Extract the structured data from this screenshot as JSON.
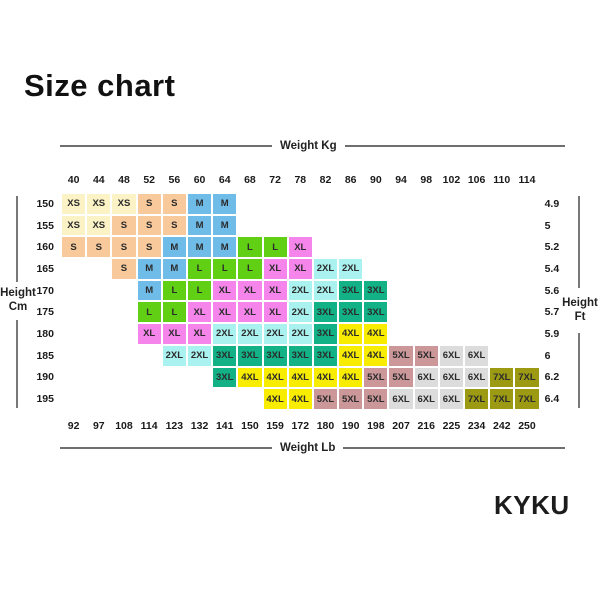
{
  "title": "Size chart",
  "brand": "KYKU",
  "chart_data": {
    "type": "table",
    "title": "Size chart",
    "top_axis": {
      "label": "Weight Kg",
      "values": [
        "40",
        "44",
        "48",
        "52",
        "56",
        "60",
        "64",
        "68",
        "72",
        "78",
        "82",
        "86",
        "90",
        "94",
        "98",
        "102",
        "106",
        "110",
        "114"
      ]
    },
    "bottom_axis": {
      "label": "Weight Lb",
      "values": [
        "92",
        "97",
        "108",
        "114",
        "123",
        "132",
        "141",
        "150",
        "159",
        "172",
        "180",
        "190",
        "198",
        "207",
        "216",
        "225",
        "234",
        "242",
        "250"
      ]
    },
    "left_axis": {
      "label": "Height Cm",
      "values": [
        "150",
        "155",
        "160",
        "165",
        "170",
        "175",
        "180",
        "185",
        "190",
        "195"
      ]
    },
    "right_axis": {
      "label": "Height Ft",
      "values": [
        "4.9",
        "5",
        "5.2",
        "5.4",
        "5.6",
        "5.7",
        "5.9",
        "6",
        "6.2",
        "6.4"
      ]
    },
    "size_colors": {
      "XS": "#FBF2C5",
      "S": "#F8C99B",
      "M": "#6FBCE9",
      "L": "#61D015",
      "XL": "#F584EB",
      "2XL": "#A9F2EF",
      "3XL": "#12B186",
      "4XL": "#F8EC00",
      "5XL": "#CB9799",
      "6XL": "#DCDCDC",
      "7XL": "#9C9A12"
    },
    "grid": [
      {
        "cm": "150",
        "ft": "4.9",
        "cells": [
          "XS",
          "XS",
          "XS",
          "S",
          "S",
          "M",
          "M",
          null,
          null,
          null,
          null,
          null,
          null,
          null,
          null,
          null,
          null,
          null,
          null
        ]
      },
      {
        "cm": "155",
        "ft": "5",
        "cells": [
          "XS",
          "XS",
          "S",
          "S",
          "S",
          "M",
          "M",
          null,
          null,
          null,
          null,
          null,
          null,
          null,
          null,
          null,
          null,
          null,
          null
        ]
      },
      {
        "cm": "160",
        "ft": "5.2",
        "cells": [
          "S",
          "S",
          "S",
          "S",
          "M",
          "M",
          "M",
          "L",
          "L",
          "XL",
          null,
          null,
          null,
          null,
          null,
          null,
          null,
          null,
          null
        ]
      },
      {
        "cm": "165",
        "ft": "5.4",
        "cells": [
          null,
          null,
          "S",
          "M",
          "M",
          "L",
          "L",
          "L",
          "XL",
          "XL",
          "2XL",
          "2XL",
          null,
          null,
          null,
          null,
          null,
          null,
          null
        ]
      },
      {
        "cm": "170",
        "ft": "5.6",
        "cells": [
          null,
          null,
          null,
          "M",
          "L",
          "L",
          "XL",
          "XL",
          "XL",
          "2XL",
          "2XL",
          "3XL",
          "3XL",
          null,
          null,
          null,
          null,
          null,
          null
        ]
      },
      {
        "cm": "175",
        "ft": "5.7",
        "cells": [
          null,
          null,
          null,
          "L",
          "L",
          "XL",
          "XL",
          "XL",
          "XL",
          "2XL",
          "3XL",
          "3XL",
          "3XL",
          null,
          null,
          null,
          null,
          null,
          null
        ]
      },
      {
        "cm": "180",
        "ft": "5.9",
        "cells": [
          null,
          null,
          null,
          "XL",
          "XL",
          "XL",
          "2XL",
          "2XL",
          "2XL",
          "2XL",
          "3XL",
          "4XL",
          "4XL",
          null,
          null,
          null,
          null,
          null,
          null
        ]
      },
      {
        "cm": "185",
        "ft": "6",
        "cells": [
          null,
          null,
          null,
          null,
          "2XL",
          "2XL",
          "3XL",
          "3XL",
          "3XL",
          "3XL",
          "3XL",
          "4XL",
          "4XL",
          "5XL",
          "5XL",
          "6XL",
          "6XL",
          null,
          null
        ]
      },
      {
        "cm": "190",
        "ft": "6.2",
        "cells": [
          null,
          null,
          null,
          null,
          null,
          null,
          "3XL",
          "4XL",
          "4XL",
          "4XL",
          "4XL",
          "4XL",
          "5XL",
          "5XL",
          "6XL",
          "6XL",
          "6XL",
          "7XL",
          "7XL"
        ]
      },
      {
        "cm": "195",
        "ft": "6.4",
        "cells": [
          null,
          null,
          null,
          null,
          null,
          null,
          null,
          null,
          "4XL",
          "4XL",
          "5XL",
          "5XL",
          "5XL",
          "6XL",
          "6XL",
          "6XL",
          "7XL",
          "7XL",
          "7XL"
        ]
      }
    ]
  }
}
